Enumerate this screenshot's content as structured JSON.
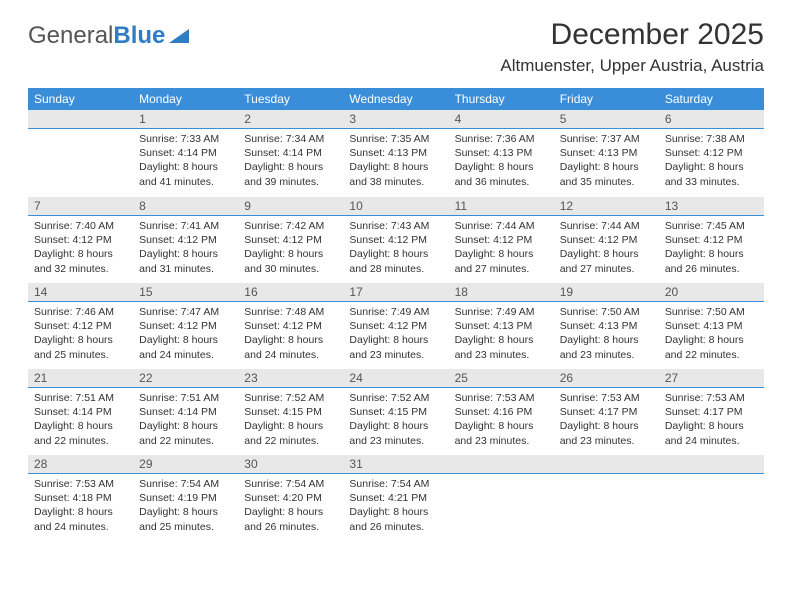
{
  "brand": {
    "part1": "General",
    "part2": "Blue"
  },
  "title": "December 2025",
  "location": "Altmuenster, Upper Austria, Austria",
  "style": {
    "header_bg": "#3a8dd8",
    "header_text": "#ffffff",
    "daynum_bg": "#e8e8e8",
    "daynum_border": "#3a8dd8",
    "page_bg": "#ffffff",
    "body_text": "#333333",
    "title_fontsize": 30,
    "location_fontsize": 17,
    "th_fontsize": 12,
    "cell_fontsize": 10.5
  },
  "columns": [
    "Sunday",
    "Monday",
    "Tuesday",
    "Wednesday",
    "Thursday",
    "Friday",
    "Saturday"
  ],
  "weeks": [
    [
      null,
      {
        "n": "1",
        "sr": "7:33 AM",
        "ss": "4:14 PM",
        "dl": "8 hours and 41 minutes."
      },
      {
        "n": "2",
        "sr": "7:34 AM",
        "ss": "4:14 PM",
        "dl": "8 hours and 39 minutes."
      },
      {
        "n": "3",
        "sr": "7:35 AM",
        "ss": "4:13 PM",
        "dl": "8 hours and 38 minutes."
      },
      {
        "n": "4",
        "sr": "7:36 AM",
        "ss": "4:13 PM",
        "dl": "8 hours and 36 minutes."
      },
      {
        "n": "5",
        "sr": "7:37 AM",
        "ss": "4:13 PM",
        "dl": "8 hours and 35 minutes."
      },
      {
        "n": "6",
        "sr": "7:38 AM",
        "ss": "4:12 PM",
        "dl": "8 hours and 33 minutes."
      }
    ],
    [
      {
        "n": "7",
        "sr": "7:40 AM",
        "ss": "4:12 PM",
        "dl": "8 hours and 32 minutes."
      },
      {
        "n": "8",
        "sr": "7:41 AM",
        "ss": "4:12 PM",
        "dl": "8 hours and 31 minutes."
      },
      {
        "n": "9",
        "sr": "7:42 AM",
        "ss": "4:12 PM",
        "dl": "8 hours and 30 minutes."
      },
      {
        "n": "10",
        "sr": "7:43 AM",
        "ss": "4:12 PM",
        "dl": "8 hours and 28 minutes."
      },
      {
        "n": "11",
        "sr": "7:44 AM",
        "ss": "4:12 PM",
        "dl": "8 hours and 27 minutes."
      },
      {
        "n": "12",
        "sr": "7:44 AM",
        "ss": "4:12 PM",
        "dl": "8 hours and 27 minutes."
      },
      {
        "n": "13",
        "sr": "7:45 AM",
        "ss": "4:12 PM",
        "dl": "8 hours and 26 minutes."
      }
    ],
    [
      {
        "n": "14",
        "sr": "7:46 AM",
        "ss": "4:12 PM",
        "dl": "8 hours and 25 minutes."
      },
      {
        "n": "15",
        "sr": "7:47 AM",
        "ss": "4:12 PM",
        "dl": "8 hours and 24 minutes."
      },
      {
        "n": "16",
        "sr": "7:48 AM",
        "ss": "4:12 PM",
        "dl": "8 hours and 24 minutes."
      },
      {
        "n": "17",
        "sr": "7:49 AM",
        "ss": "4:12 PM",
        "dl": "8 hours and 23 minutes."
      },
      {
        "n": "18",
        "sr": "7:49 AM",
        "ss": "4:13 PM",
        "dl": "8 hours and 23 minutes."
      },
      {
        "n": "19",
        "sr": "7:50 AM",
        "ss": "4:13 PM",
        "dl": "8 hours and 23 minutes."
      },
      {
        "n": "20",
        "sr": "7:50 AM",
        "ss": "4:13 PM",
        "dl": "8 hours and 22 minutes."
      }
    ],
    [
      {
        "n": "21",
        "sr": "7:51 AM",
        "ss": "4:14 PM",
        "dl": "8 hours and 22 minutes."
      },
      {
        "n": "22",
        "sr": "7:51 AM",
        "ss": "4:14 PM",
        "dl": "8 hours and 22 minutes."
      },
      {
        "n": "23",
        "sr": "7:52 AM",
        "ss": "4:15 PM",
        "dl": "8 hours and 22 minutes."
      },
      {
        "n": "24",
        "sr": "7:52 AM",
        "ss": "4:15 PM",
        "dl": "8 hours and 23 minutes."
      },
      {
        "n": "25",
        "sr": "7:53 AM",
        "ss": "4:16 PM",
        "dl": "8 hours and 23 minutes."
      },
      {
        "n": "26",
        "sr": "7:53 AM",
        "ss": "4:17 PM",
        "dl": "8 hours and 23 minutes."
      },
      {
        "n": "27",
        "sr": "7:53 AM",
        "ss": "4:17 PM",
        "dl": "8 hours and 24 minutes."
      }
    ],
    [
      {
        "n": "28",
        "sr": "7:53 AM",
        "ss": "4:18 PM",
        "dl": "8 hours and 24 minutes."
      },
      {
        "n": "29",
        "sr": "7:54 AM",
        "ss": "4:19 PM",
        "dl": "8 hours and 25 minutes."
      },
      {
        "n": "30",
        "sr": "7:54 AM",
        "ss": "4:20 PM",
        "dl": "8 hours and 26 minutes."
      },
      {
        "n": "31",
        "sr": "7:54 AM",
        "ss": "4:21 PM",
        "dl": "8 hours and 26 minutes."
      },
      null,
      null,
      null
    ]
  ],
  "labels": {
    "sunrise": "Sunrise:",
    "sunset": "Sunset:",
    "daylight": "Daylight:"
  }
}
